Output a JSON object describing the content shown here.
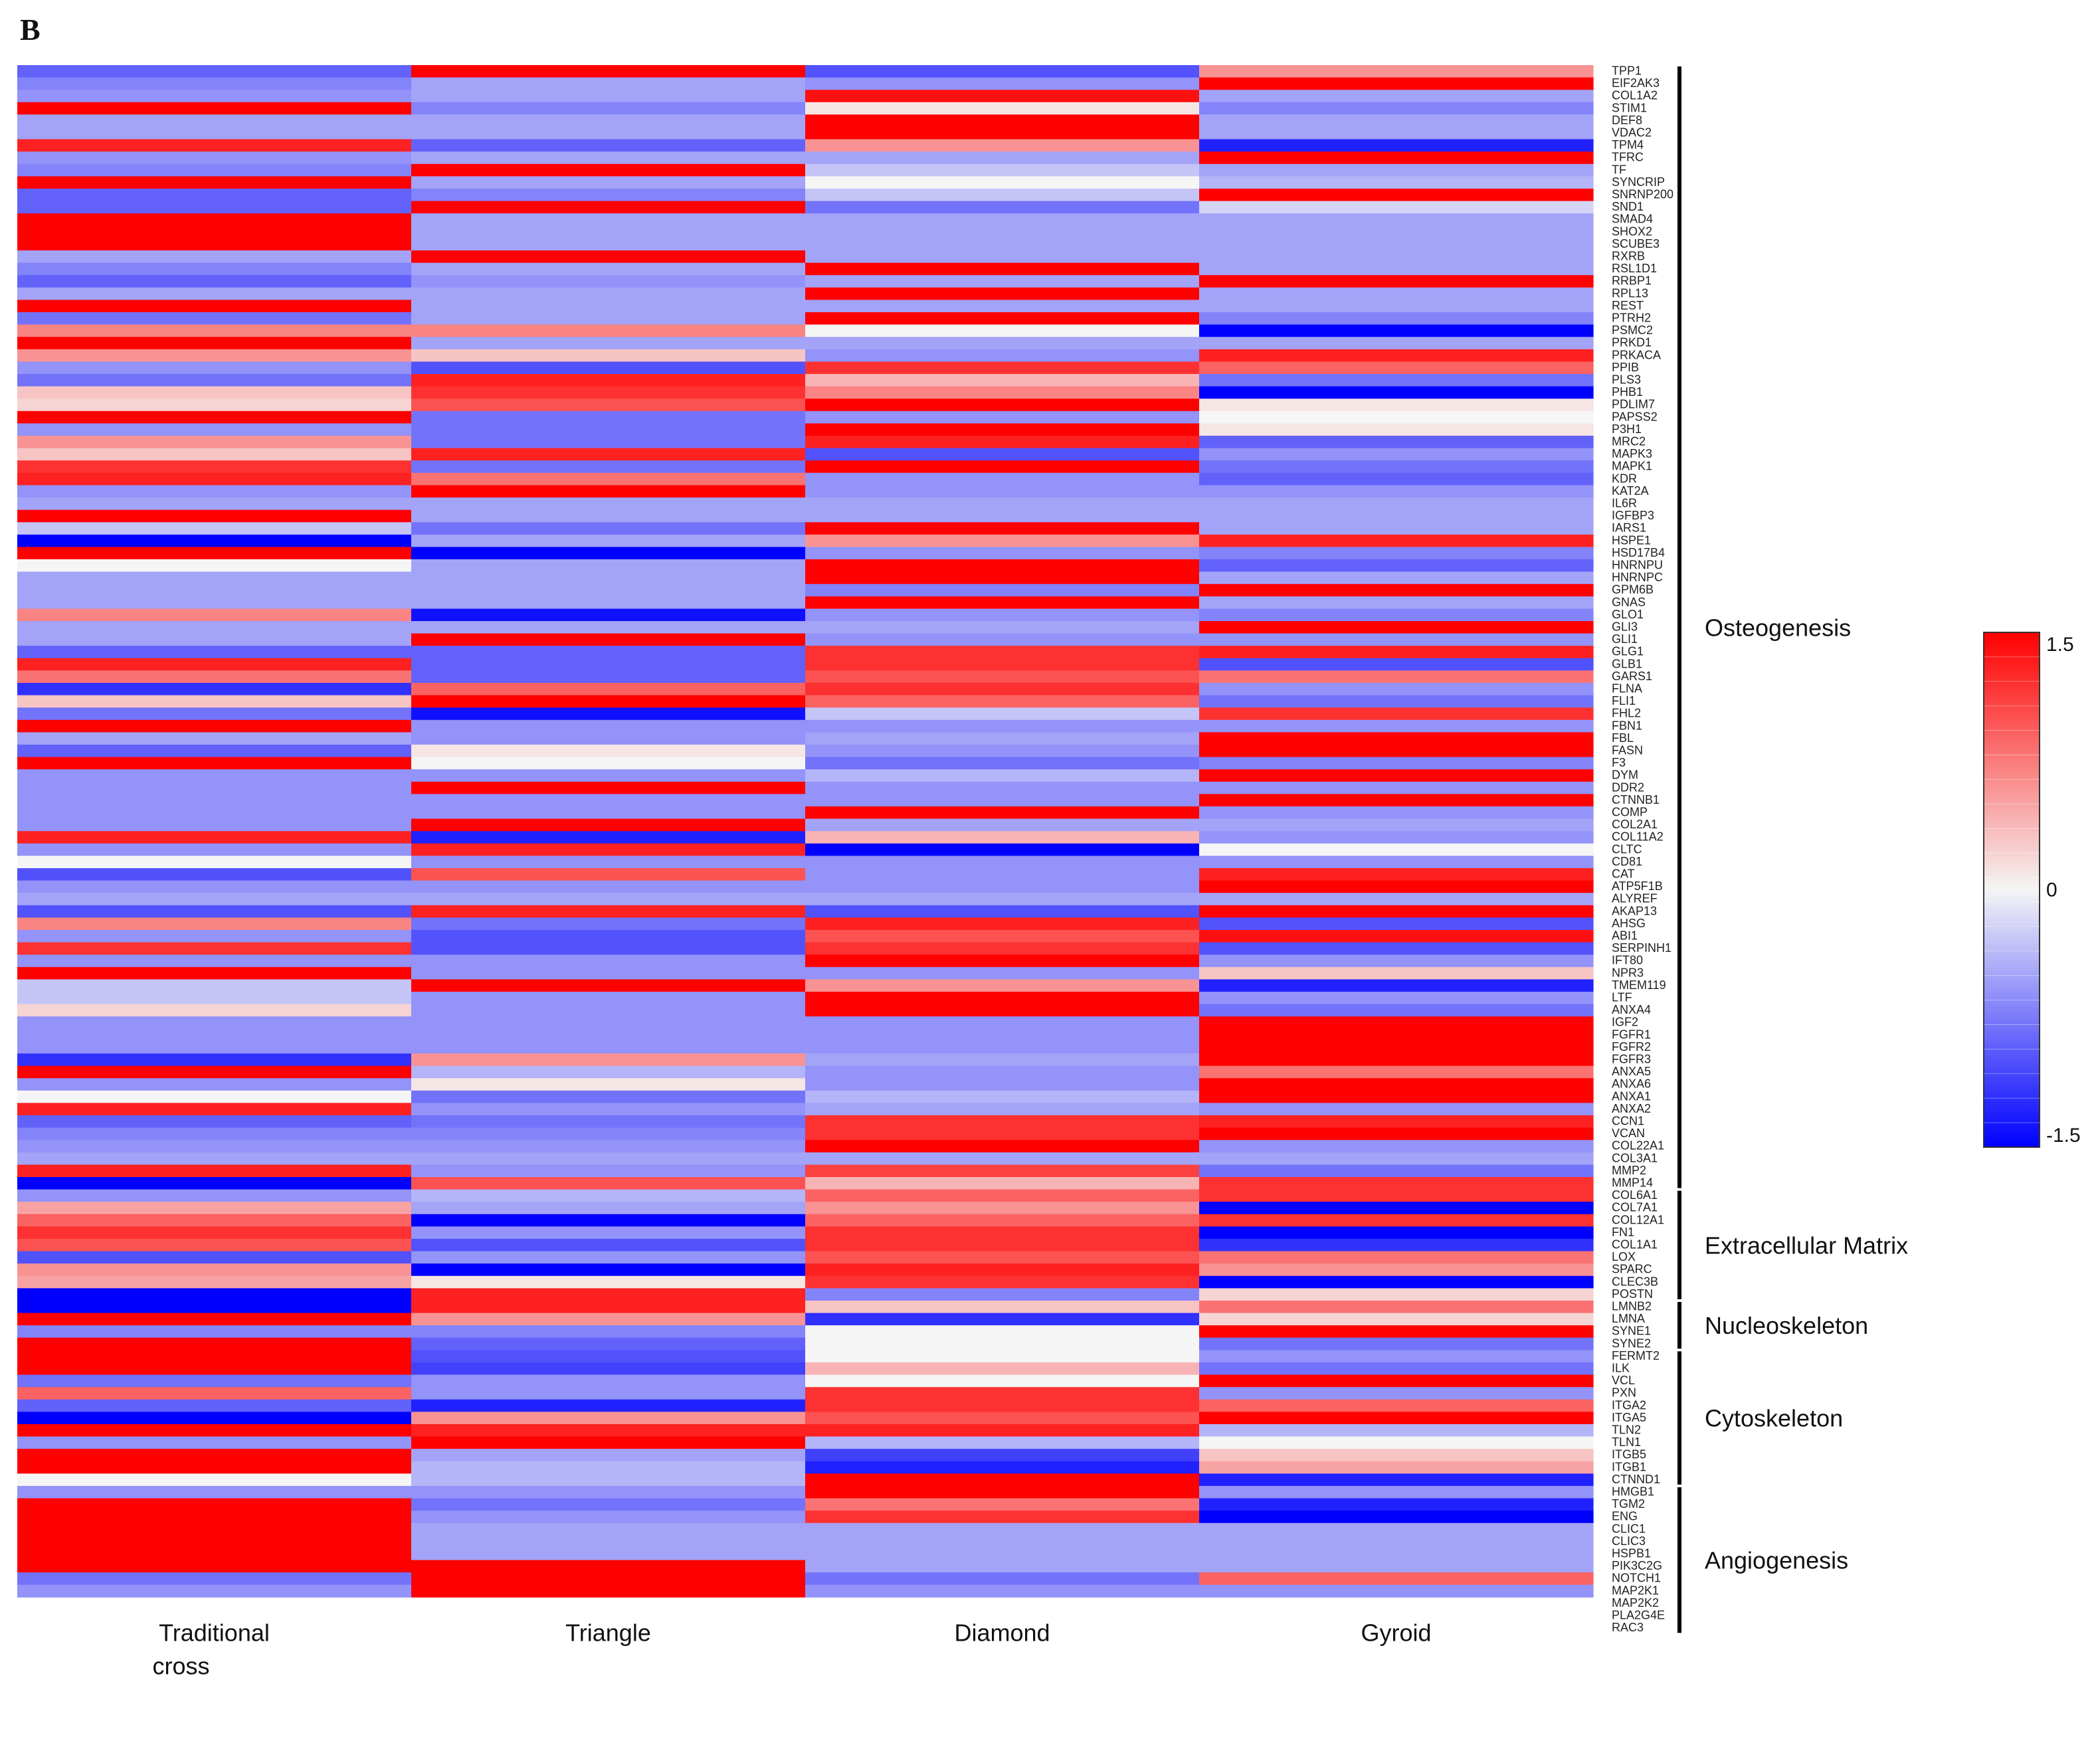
{
  "panel_label": "B",
  "chart_data": {
    "type": "heatmap",
    "columns": [
      "Traditional cross",
      "Triangle",
      "Diamond",
      "Gyroid"
    ],
    "genes": [
      "TPP1",
      "EIF2AK3",
      "COL1A2",
      "STIM1",
      "DEF8",
      "VDAC2",
      "TPM4",
      "TFRC",
      "TF",
      "SYNCRIP",
      "SNRNP200",
      "SND1",
      "SMAD4",
      "SHOX2",
      "SCUBE3",
      "RXRB",
      "RSL1D1",
      "RRBP1",
      "RPL13",
      "REST",
      "PTRH2",
      "PSMC2",
      "PRKD1",
      "PRKACA",
      "PPIB",
      "PLS3",
      "PHB1",
      "PDLIM7",
      "PAPSS2",
      "P3H1",
      "MRC2",
      "MAPK3",
      "MAPK1",
      "KDR",
      "KAT2A",
      "IL6R",
      "IGFBP3",
      "IARS1",
      "HSPE1",
      "HSD17B4",
      "HNRNPU",
      "HNRNPC",
      "GPM6B",
      "GNAS",
      "GLO1",
      "GLI3",
      "GLI1",
      "GLG1",
      "GLB1",
      "GARS1",
      "FLNA",
      "FLI1",
      "FHL2",
      "FBN1",
      "FBL",
      "FASN",
      "F3",
      "DYM",
      "DDR2",
      "CTNNB1",
      "COMP",
      "COL2A1",
      "COL11A2",
      "CLTC",
      "CD81",
      "CAT",
      "ATP5F1B",
      "ALYREF",
      "AKAP13",
      "AHSG",
      "ABI1",
      "SERPINH1",
      "IFT80",
      "NPR3",
      "TMEM119",
      "LTF",
      "ANXA4",
      "IGF2",
      "FGFR1",
      "FGFR2",
      "FGFR3",
      "ANXA5",
      "ANXA6",
      "ANXA1",
      "ANXA2",
      "CCN1",
      "VCAN",
      "COL22A1",
      "COL3A1",
      "MMP2",
      "MMP14",
      "COL6A1",
      "COL7A1",
      "COL12A1",
      "FN1",
      "COL1A1",
      "LOX",
      "SPARC",
      "CLEC3B",
      "POSTN",
      "LMNB2",
      "LMNA",
      "SYNE1",
      "SYNE2",
      "FERMT2",
      "ILK",
      "VCL",
      "PXN",
      "ITGA2",
      "ITGA5",
      "TLN2",
      "TLN1",
      "ITGB5",
      "ITGB1",
      "CTNND1",
      "HMGB1",
      "TGM2",
      "ENG",
      "CLIC1",
      "CLIC3",
      "HSPB1",
      "PIK3C2G",
      "NOTCH1",
      "MAP2K1",
      "MAP2K2",
      "PLA2G4E",
      "RAC3"
    ],
    "values": [
      [
        -0.9,
        1.5,
        -1.0,
        0.6
      ],
      [
        -0.7,
        -0.5,
        -0.6,
        1.5
      ],
      [
        -0.6,
        -0.5,
        1.4,
        -0.5
      ],
      [
        1.5,
        -0.7,
        0.1,
        -0.7
      ],
      [
        -0.5,
        -0.5,
        1.5,
        -0.5
      ],
      [
        -0.5,
        -0.5,
        1.5,
        -0.5
      ],
      [
        1.3,
        -0.9,
        0.6,
        -1.3
      ],
      [
        -0.6,
        -0.5,
        -0.5,
        1.5
      ],
      [
        -0.7,
        1.5,
        -0.3,
        -0.5
      ],
      [
        1.5,
        -0.5,
        0.0,
        -0.4
      ],
      [
        -0.9,
        -0.7,
        -0.3,
        1.5
      ],
      [
        -0.9,
        1.5,
        -0.8,
        -0.2
      ],
      [
        1.5,
        -0.5,
        -0.5,
        -0.5
      ],
      [
        1.5,
        -0.5,
        -0.5,
        -0.5
      ],
      [
        1.5,
        -0.5,
        -0.5,
        -0.5
      ],
      [
        -0.5,
        1.5,
        -0.5,
        -0.5
      ],
      [
        -0.7,
        -0.5,
        1.5,
        -0.5
      ],
      [
        -0.9,
        -0.6,
        -0.5,
        1.5
      ],
      [
        -0.5,
        -0.5,
        1.5,
        -0.5
      ],
      [
        1.5,
        -0.5,
        -0.5,
        -0.5
      ],
      [
        -0.8,
        -0.5,
        1.5,
        -0.7
      ],
      [
        0.7,
        0.7,
        0.0,
        -1.5
      ],
      [
        1.5,
        -0.5,
        -0.5,
        -0.5
      ],
      [
        0.6,
        0.3,
        -0.6,
        1.3
      ],
      [
        -0.6,
        -1.0,
        1.2,
        0.9
      ],
      [
        -0.8,
        1.3,
        0.4,
        -0.8
      ],
      [
        0.3,
        1.2,
        0.7,
        -1.5
      ],
      [
        0.2,
        1.0,
        1.5,
        0.1
      ],
      [
        1.5,
        -0.8,
        -0.6,
        0.0
      ],
      [
        -0.6,
        -0.8,
        1.5,
        0.1
      ],
      [
        0.6,
        -0.8,
        1.3,
        -0.9
      ],
      [
        0.3,
        1.3,
        -1.0,
        -0.6
      ],
      [
        1.2,
        -0.8,
        1.5,
        -0.8
      ],
      [
        1.3,
        0.8,
        -0.6,
        -0.9
      ],
      [
        -0.6,
        1.5,
        -0.6,
        -0.6
      ],
      [
        -0.5,
        -0.5,
        -0.5,
        -0.5
      ],
      [
        1.5,
        -0.5,
        -0.5,
        -0.5
      ],
      [
        -0.3,
        -0.8,
        1.5,
        -0.5
      ],
      [
        -1.5,
        -0.5,
        0.6,
        1.3
      ],
      [
        1.5,
        -1.5,
        -0.6,
        -0.7
      ],
      [
        0.0,
        -0.5,
        1.5,
        -0.9
      ],
      [
        -0.5,
        -0.5,
        1.5,
        -0.5
      ],
      [
        -0.5,
        -0.5,
        -0.7,
        1.5
      ],
      [
        -0.5,
        -0.5,
        1.5,
        -0.5
      ],
      [
        0.7,
        -1.4,
        -0.6,
        -0.7
      ],
      [
        -0.5,
        -0.5,
        -0.5,
        1.5
      ],
      [
        -0.5,
        1.5,
        -0.6,
        -0.6
      ],
      [
        -0.9,
        -0.9,
        1.2,
        1.3
      ],
      [
        1.3,
        -0.9,
        1.2,
        -1.0
      ],
      [
        0.8,
        -0.9,
        1.0,
        0.8
      ],
      [
        -1.2,
        0.9,
        1.2,
        -0.6
      ],
      [
        0.3,
        1.5,
        0.9,
        -0.8
      ],
      [
        -0.8,
        -1.4,
        -0.3,
        1.2
      ],
      [
        1.5,
        -0.6,
        -0.6,
        -0.6
      ],
      [
        -0.5,
        -0.6,
        -0.5,
        1.5
      ],
      [
        -0.9,
        0.1,
        -0.6,
        1.5
      ],
      [
        1.5,
        0.0,
        -0.8,
        -0.7
      ],
      [
        -0.6,
        -0.6,
        -0.4,
        1.5
      ],
      [
        -0.6,
        1.5,
        -0.6,
        -0.6
      ],
      [
        -0.6,
        -0.6,
        -0.6,
        1.5
      ],
      [
        -0.6,
        -0.6,
        1.5,
        -0.6
      ],
      [
        -0.6,
        1.5,
        -0.5,
        -0.5
      ],
      [
        1.3,
        -1.3,
        0.4,
        -0.6
      ],
      [
        -0.6,
        1.3,
        -1.5,
        0.0
      ],
      [
        0.0,
        -0.6,
        -0.6,
        -0.6
      ],
      [
        -1.0,
        1.0,
        -0.6,
        1.3
      ],
      [
        -0.6,
        -0.6,
        -0.6,
        1.5
      ],
      [
        -0.5,
        -0.5,
        -0.5,
        -0.5
      ],
      [
        -1.0,
        1.3,
        -1.0,
        1.5
      ],
      [
        0.7,
        -0.8,
        1.3,
        -1.0
      ],
      [
        -0.6,
        -1.0,
        1.0,
        1.4
      ],
      [
        1.2,
        -1.0,
        1.2,
        -1.0
      ],
      [
        -0.6,
        -0.6,
        1.5,
        -0.6
      ],
      [
        1.5,
        -0.6,
        -0.6,
        0.3
      ],
      [
        -0.3,
        1.5,
        0.6,
        -1.3
      ],
      [
        -0.3,
        -0.6,
        1.5,
        -0.6
      ],
      [
        0.2,
        -0.6,
        1.5,
        -0.8
      ],
      [
        -0.6,
        -0.6,
        -0.6,
        1.5
      ],
      [
        -0.6,
        -0.6,
        -0.6,
        1.5
      ],
      [
        -0.6,
        -0.6,
        -0.6,
        1.5
      ],
      [
        -1.2,
        0.6,
        -0.5,
        1.5
      ],
      [
        1.5,
        -0.4,
        -0.6,
        0.8
      ],
      [
        -0.6,
        0.1,
        -0.6,
        1.5
      ],
      [
        0.0,
        -0.8,
        -0.4,
        1.5
      ],
      [
        1.3,
        -0.6,
        -0.5,
        -0.6
      ],
      [
        -0.9,
        -0.8,
        1.2,
        1.3
      ],
      [
        -0.7,
        -0.7,
        1.2,
        1.5
      ],
      [
        -0.6,
        -0.6,
        1.5,
        -0.6
      ],
      [
        -0.5,
        -0.5,
        -0.5,
        -0.5
      ],
      [
        1.3,
        -0.6,
        1.1,
        -0.8
      ],
      [
        -1.5,
        1.0,
        0.4,
        1.2
      ],
      [
        -0.6,
        -0.4,
        0.9,
        1.2
      ],
      [
        0.5,
        -0.5,
        0.6,
        -1.5
      ],
      [
        0.9,
        -1.5,
        0.9,
        1.2
      ],
      [
        1.2,
        -0.6,
        1.2,
        -1.5
      ],
      [
        1.0,
        -1.0,
        1.2,
        -1.2
      ],
      [
        -1.0,
        -0.6,
        1.0,
        0.8
      ],
      [
        0.6,
        -1.5,
        1.3,
        0.6
      ],
      [
        0.5,
        0.1,
        1.2,
        -1.5
      ],
      [
        -1.5,
        1.3,
        -0.7,
        0.2
      ],
      [
        -1.5,
        1.3,
        0.3,
        0.8
      ],
      [
        1.5,
        0.6,
        -1.2,
        0.2
      ],
      [
        -0.7,
        -0.7,
        0.0,
        1.5
      ],
      [
        1.5,
        -0.9,
        0.0,
        -0.8
      ],
      [
        1.5,
        -1.0,
        0.0,
        -0.6
      ],
      [
        1.5,
        -1.1,
        0.4,
        -0.8
      ],
      [
        -0.8,
        -0.6,
        0.0,
        1.5
      ],
      [
        0.9,
        -0.6,
        1.2,
        -0.6
      ],
      [
        -0.9,
        -1.3,
        1.2,
        0.9
      ],
      [
        -1.5,
        0.6,
        1.0,
        1.5
      ],
      [
        1.5,
        1.3,
        1.3,
        -0.4
      ],
      [
        -0.6,
        1.5,
        -0.4,
        0.0
      ],
      [
        1.5,
        -0.5,
        -1.1,
        0.3
      ],
      [
        1.5,
        -0.4,
        -1.3,
        0.5
      ],
      [
        0.0,
        -0.4,
        1.5,
        -1.3
      ],
      [
        -0.6,
        -0.6,
        1.5,
        -0.6
      ],
      [
        1.5,
        -0.8,
        0.8,
        -1.3
      ],
      [
        1.5,
        -0.6,
        1.2,
        -1.5
      ],
      [
        1.5,
        -0.5,
        -0.5,
        -0.5
      ],
      [
        1.5,
        -0.5,
        -0.5,
        -0.5
      ],
      [
        1.5,
        -0.5,
        -0.5,
        -0.5
      ],
      [
        1.5,
        1.5,
        -0.5,
        -0.5
      ],
      [
        -0.8,
        1.5,
        -0.8,
        0.9
      ],
      [
        -0.6,
        1.5,
        -0.6,
        -0.6
      ]
    ],
    "color_scale": {
      "min": -1.5,
      "mid": 0,
      "max": 1.5,
      "low_color": "#0000ff",
      "mid_color": "#f5f5f5",
      "high_color": "#ff0000",
      "tick_labels": [
        "1.5",
        "0",
        "-1.5"
      ]
    },
    "row_groups": [
      {
        "name": "Osteogenesis",
        "start": 0,
        "end": 90
      },
      {
        "name": "Extracellular Matrix",
        "start": 91,
        "end": 99
      },
      {
        "name": "Nucleoskeleton",
        "start": 100,
        "end": 103
      },
      {
        "name": "Cytoskeleton",
        "start": 104,
        "end": 114
      },
      {
        "name": "Angiogenesis",
        "start": 115,
        "end": 126
      }
    ],
    "column_label_lines": [
      [
        "Traditional",
        "cross"
      ],
      [
        "Triangle"
      ],
      [
        "Diamond"
      ],
      [
        "Gyroid"
      ]
    ]
  }
}
